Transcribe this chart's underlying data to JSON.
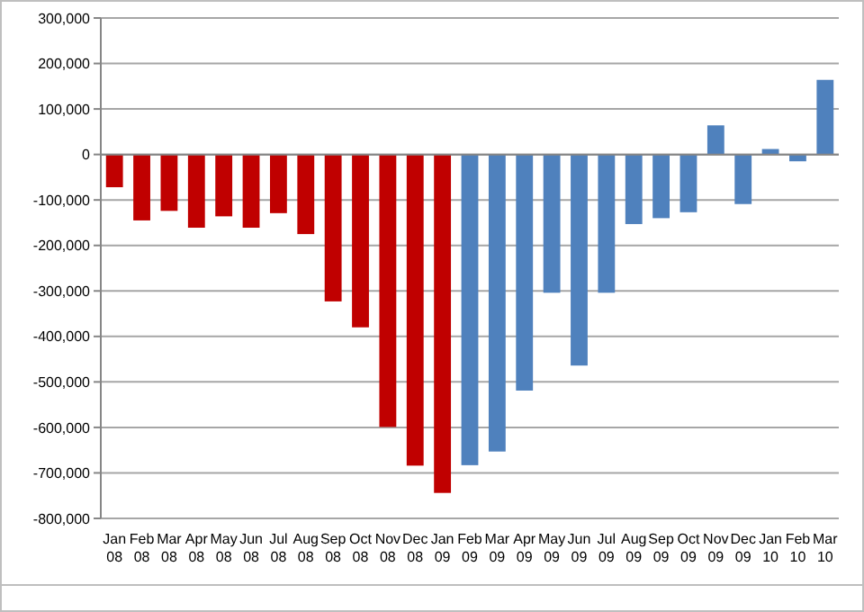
{
  "chart_data": {
    "type": "bar",
    "categories": [
      "Jan 08",
      "Feb 08",
      "Mar 08",
      "Apr 08",
      "May 08",
      "Jun 08",
      "Jul 08",
      "Aug 08",
      "Sep 08",
      "Oct 08",
      "Nov 08",
      "Dec 08",
      "Jan 09",
      "Feb 09",
      "Mar 09",
      "Apr 09",
      "May 09",
      "Jun 09",
      "Jul 09",
      "Aug 09",
      "Sep 09",
      "Oct 09",
      "Nov 09",
      "Dec 09",
      "Jan 10",
      "Feb 10",
      "Mar 10"
    ],
    "values": [
      -72000,
      -145000,
      -124000,
      -161000,
      -136000,
      -161000,
      -129000,
      -175000,
      -323000,
      -380000,
      -599000,
      -684000,
      -744000,
      -683000,
      -653000,
      -519000,
      -304000,
      -464000,
      -304000,
      -153000,
      -140000,
      -127000,
      64000,
      -109000,
      12000,
      -15000,
      164000
    ],
    "colors": [
      "#c00000",
      "#c00000",
      "#c00000",
      "#c00000",
      "#c00000",
      "#c00000",
      "#c00000",
      "#c00000",
      "#c00000",
      "#c00000",
      "#c00000",
      "#c00000",
      "#c00000",
      "#4f81bd",
      "#4f81bd",
      "#4f81bd",
      "#4f81bd",
      "#4f81bd",
      "#4f81bd",
      "#4f81bd",
      "#4f81bd",
      "#4f81bd",
      "#4f81bd",
      "#4f81bd",
      "#4f81bd",
      "#4f81bd",
      "#4f81bd"
    ],
    "ylim": [
      -800000,
      300000
    ],
    "yticks": [
      {
        "value": -800000,
        "label": "-800,000"
      },
      {
        "value": -700000,
        "label": "-700,000"
      },
      {
        "value": -600000,
        "label": "-600,000"
      },
      {
        "value": -500000,
        "label": "-500,000"
      },
      {
        "value": -400000,
        "label": "-400,000"
      },
      {
        "value": -300000,
        "label": "-300,000"
      },
      {
        "value": -200000,
        "label": "-200,000"
      },
      {
        "value": -100000,
        "label": "-100,000"
      },
      0,
      {
        "value": 100000,
        "label": "100,000"
      },
      {
        "value": 200000,
        "label": "200,000"
      },
      {
        "value": 300000,
        "label": "300,000"
      }
    ],
    "grid": "y"
  }
}
